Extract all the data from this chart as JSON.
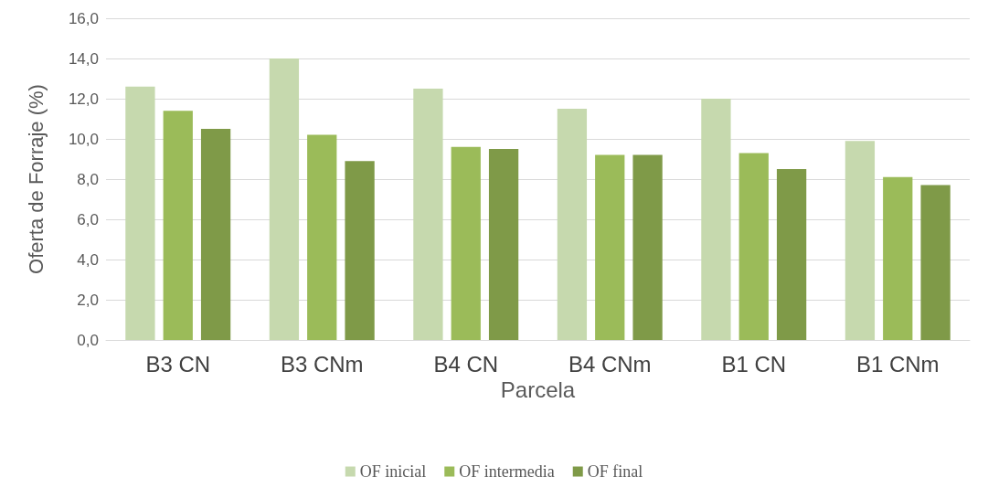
{
  "chart_data": {
    "type": "bar",
    "xlabel": "Parcela",
    "ylabel": "Oferta de Forraje (%)",
    "categories": [
      "B3 CN",
      "B3 CNm",
      "B4 CN",
      "B4 CNm",
      "B1 CN",
      "B1 CNm"
    ],
    "series": [
      {
        "name": "OF inicial",
        "color": "#c6d9ae",
        "values": [
          12.6,
          14.0,
          12.5,
          11.5,
          12.0,
          9.9
        ]
      },
      {
        "name": "OF intermedia",
        "color": "#9bbb59",
        "values": [
          11.4,
          10.2,
          9.6,
          9.2,
          9.3,
          8.1
        ]
      },
      {
        "name": "OF final",
        "color": "#7f9a48",
        "values": [
          10.5,
          8.9,
          9.5,
          9.2,
          8.5,
          7.7
        ]
      }
    ],
    "ylim": [
      0,
      16
    ],
    "yticks": [
      {
        "value": 0,
        "label": "0,0"
      },
      {
        "value": 2,
        "label": "2,0"
      },
      {
        "value": 4,
        "label": "4,0"
      },
      {
        "value": 6,
        "label": "6,0"
      },
      {
        "value": 8,
        "label": "8,0"
      },
      {
        "value": 10,
        "label": "10,0"
      },
      {
        "value": 12,
        "label": "12,0"
      },
      {
        "value": 14,
        "label": "14,0"
      },
      {
        "value": 16,
        "label": "16,0"
      }
    ],
    "grid": "y",
    "legend": "bottom"
  }
}
